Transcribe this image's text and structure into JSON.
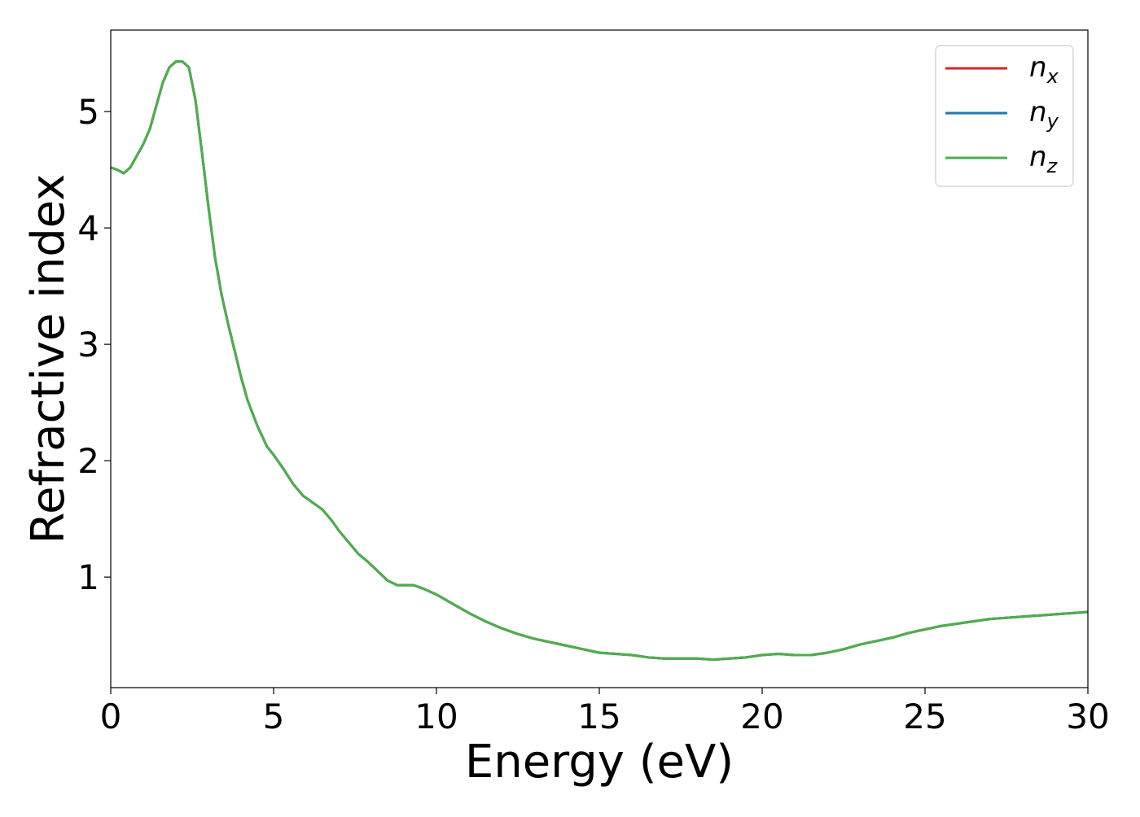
{
  "chart_data": {
    "type": "line",
    "xlabel": "Energy (eV)",
    "ylabel": "Refractive index",
    "xlim": [
      0,
      30
    ],
    "ylim": [
      0.05,
      5.7
    ],
    "xticks": [
      0,
      5,
      10,
      15,
      20,
      25,
      30
    ],
    "xtick_labels": [
      "0",
      "5",
      "10",
      "15",
      "20",
      "25",
      "30"
    ],
    "yticks": [
      1,
      2,
      3,
      4,
      5
    ],
    "ytick_labels": [
      "1",
      "2",
      "3",
      "4",
      "5"
    ],
    "grid": false,
    "legend_position": "top-right",
    "x": [
      0,
      0.2,
      0.4,
      0.6,
      0.8,
      1.0,
      1.2,
      1.4,
      1.6,
      1.8,
      2.0,
      2.2,
      2.4,
      2.6,
      2.8,
      3.0,
      3.2,
      3.4,
      3.6,
      3.8,
      4.0,
      4.2,
      4.5,
      4.8,
      5.0,
      5.3,
      5.6,
      5.9,
      6.2,
      6.5,
      6.8,
      7.0,
      7.3,
      7.6,
      7.9,
      8.2,
      8.5,
      8.8,
      9.0,
      9.3,
      9.6,
      10.0,
      10.5,
      11.0,
      11.5,
      12.0,
      12.5,
      13.0,
      13.5,
      14.0,
      14.5,
      15.0,
      15.5,
      16.0,
      16.5,
      17.0,
      17.5,
      18.0,
      18.5,
      19.0,
      19.5,
      20.0,
      20.5,
      21.0,
      21.5,
      22.0,
      22.5,
      23.0,
      23.5,
      24.0,
      24.5,
      25.0,
      25.5,
      26.0,
      26.5,
      27.0,
      27.5,
      28.0,
      28.5,
      29.0,
      29.5,
      30.0
    ],
    "series": [
      {
        "name": "n_x",
        "label_main": "n",
        "label_sub": "x",
        "color": "#d62728",
        "values": [
          4.52,
          4.5,
          4.47,
          4.52,
          4.62,
          4.72,
          4.85,
          5.05,
          5.25,
          5.38,
          5.43,
          5.43,
          5.38,
          5.1,
          4.65,
          4.18,
          3.75,
          3.43,
          3.18,
          2.95,
          2.72,
          2.52,
          2.3,
          2.12,
          2.05,
          1.93,
          1.8,
          1.7,
          1.64,
          1.58,
          1.48,
          1.4,
          1.3,
          1.2,
          1.13,
          1.05,
          0.97,
          0.93,
          0.93,
          0.93,
          0.9,
          0.85,
          0.77,
          0.69,
          0.62,
          0.56,
          0.51,
          0.47,
          0.44,
          0.41,
          0.38,
          0.35,
          0.34,
          0.33,
          0.31,
          0.3,
          0.3,
          0.3,
          0.29,
          0.3,
          0.31,
          0.33,
          0.34,
          0.33,
          0.33,
          0.35,
          0.38,
          0.42,
          0.45,
          0.48,
          0.52,
          0.55,
          0.58,
          0.6,
          0.62,
          0.64,
          0.65,
          0.66,
          0.67,
          0.68,
          0.69,
          0.7
        ]
      },
      {
        "name": "n_y",
        "label_main": "n",
        "label_sub": "y",
        "color": "#1f77b4",
        "values": [
          4.52,
          4.5,
          4.47,
          4.52,
          4.62,
          4.72,
          4.85,
          5.05,
          5.25,
          5.38,
          5.43,
          5.43,
          5.38,
          5.1,
          4.65,
          4.18,
          3.75,
          3.43,
          3.18,
          2.95,
          2.72,
          2.52,
          2.3,
          2.12,
          2.05,
          1.93,
          1.8,
          1.7,
          1.64,
          1.58,
          1.48,
          1.4,
          1.3,
          1.2,
          1.13,
          1.05,
          0.97,
          0.93,
          0.93,
          0.93,
          0.9,
          0.85,
          0.77,
          0.69,
          0.62,
          0.56,
          0.51,
          0.47,
          0.44,
          0.41,
          0.38,
          0.35,
          0.34,
          0.33,
          0.31,
          0.3,
          0.3,
          0.3,
          0.29,
          0.3,
          0.31,
          0.33,
          0.34,
          0.33,
          0.33,
          0.35,
          0.38,
          0.42,
          0.45,
          0.48,
          0.52,
          0.55,
          0.58,
          0.6,
          0.62,
          0.64,
          0.65,
          0.66,
          0.67,
          0.68,
          0.69,
          0.7
        ]
      },
      {
        "name": "n_z",
        "label_main": "n",
        "label_sub": "z",
        "color": "#4daf4a",
        "values": [
          4.52,
          4.5,
          4.47,
          4.52,
          4.62,
          4.72,
          4.85,
          5.05,
          5.25,
          5.38,
          5.43,
          5.43,
          5.38,
          5.1,
          4.65,
          4.18,
          3.75,
          3.43,
          3.18,
          2.95,
          2.72,
          2.52,
          2.3,
          2.12,
          2.05,
          1.93,
          1.8,
          1.7,
          1.64,
          1.58,
          1.48,
          1.4,
          1.3,
          1.2,
          1.13,
          1.05,
          0.97,
          0.93,
          0.93,
          0.93,
          0.9,
          0.85,
          0.77,
          0.69,
          0.62,
          0.56,
          0.51,
          0.47,
          0.44,
          0.41,
          0.38,
          0.35,
          0.34,
          0.33,
          0.31,
          0.3,
          0.3,
          0.3,
          0.29,
          0.3,
          0.31,
          0.33,
          0.34,
          0.33,
          0.33,
          0.35,
          0.38,
          0.42,
          0.45,
          0.48,
          0.52,
          0.55,
          0.58,
          0.6,
          0.62,
          0.64,
          0.65,
          0.66,
          0.67,
          0.68,
          0.69,
          0.7
        ]
      }
    ]
  }
}
